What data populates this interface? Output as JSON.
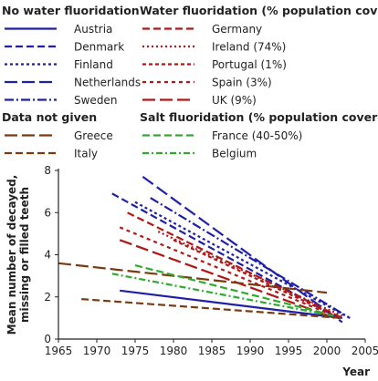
{
  "chart_data": {
    "type": "line",
    "xlabel": "Year",
    "ylabel": "Mean number of decayed, missing or filled teeth",
    "xlim": [
      1965,
      2005
    ],
    "ylim": [
      0,
      8
    ],
    "xticks": [
      "1965",
      "1970",
      "1975",
      "1980",
      "1985",
      "1990",
      "1995",
      "2000",
      "2005"
    ],
    "yticks": [
      "0",
      "2",
      "4",
      "6",
      "8"
    ],
    "grid": false,
    "legend_position": "top",
    "legend_groups": [
      {
        "title": "No water fluoridation",
        "entries": [
          "Austria",
          "Denmark",
          "Finland",
          "Netherlands",
          "Sweden"
        ]
      },
      {
        "title": "Water fluoridation (% population covered)",
        "entries": [
          "Germany",
          "Ireland (74%)",
          "Portugal (1%)",
          "Spain (3%)",
          "UK (9%)"
        ]
      },
      {
        "title": "Data not given",
        "entries": [
          "Greece",
          "Italy"
        ]
      },
      {
        "title": "Salt fluoridation (% population covered)",
        "entries": [
          "France (40-50%)",
          "Belgium"
        ]
      }
    ],
    "series": [
      {
        "name": "Austria",
        "color": "#1f1fa8",
        "dash": "solid",
        "x": [
          1973,
          2002
        ],
        "y": [
          2.3,
          1.0
        ]
      },
      {
        "name": "Denmark",
        "color": "#1f1fa8",
        "dash": "8,4",
        "x": [
          1972,
          2002
        ],
        "y": [
          6.9,
          0.9
        ]
      },
      {
        "name": "Finland",
        "color": "#1f1fa8",
        "dash": "3,3",
        "x": [
          1975,
          2003
        ],
        "y": [
          6.5,
          1.0
        ]
      },
      {
        "name": "Netherlands",
        "color": "#1f1fa8",
        "dash": "14,5",
        "x": [
          1976,
          2002
        ],
        "y": [
          7.7,
          0.8
        ]
      },
      {
        "name": "Sweden",
        "color": "#1f1fa8",
        "dash": "10,3,2,3",
        "x": [
          1977,
          2003
        ],
        "y": [
          6.7,
          1.0
        ]
      },
      {
        "name": "Germany",
        "color": "#b01818",
        "dash": "8,4",
        "x": [
          1974,
          2002
        ],
        "y": [
          6.0,
          1.0
        ]
      },
      {
        "name": "Ireland (74%)",
        "color": "#b01818",
        "dash": "2,3",
        "x": [
          1978,
          2002
        ],
        "y": [
          5.1,
          1.1
        ]
      },
      {
        "name": "Portugal (1%)",
        "color": "#b01818",
        "dash": "4,3",
        "x": [
          1980,
          2000
        ],
        "y": [
          4.7,
          1.3
        ]
      },
      {
        "name": "Spain (3%)",
        "color": "#b01818",
        "dash": "4,4",
        "x": [
          1973,
          2001
        ],
        "y": [
          5.3,
          1.1
        ]
      },
      {
        "name": "UK (9%)",
        "color": "#b01818",
        "dash": "14,5",
        "x": [
          1973,
          2001
        ],
        "y": [
          4.7,
          1.0
        ]
      },
      {
        "name": "Greece",
        "color": "#7a3a10",
        "dash": "14,5",
        "x": [
          1965,
          2000
        ],
        "y": [
          3.6,
          2.2
        ]
      },
      {
        "name": "Italy",
        "color": "#7a3a10",
        "dash": "8,4",
        "x": [
          1968,
          2002
        ],
        "y": [
          1.9,
          1.0
        ]
      },
      {
        "name": "France (40-50%)",
        "color": "#2eaa2e",
        "dash": "8,4",
        "x": [
          1975,
          2000
        ],
        "y": [
          3.5,
          1.2
        ]
      },
      {
        "name": "Belgium",
        "color": "#2eaa2e",
        "dash": "7,3,2,3",
        "x": [
          1972,
          2001
        ],
        "y": [
          3.1,
          1.1
        ]
      }
    ]
  }
}
